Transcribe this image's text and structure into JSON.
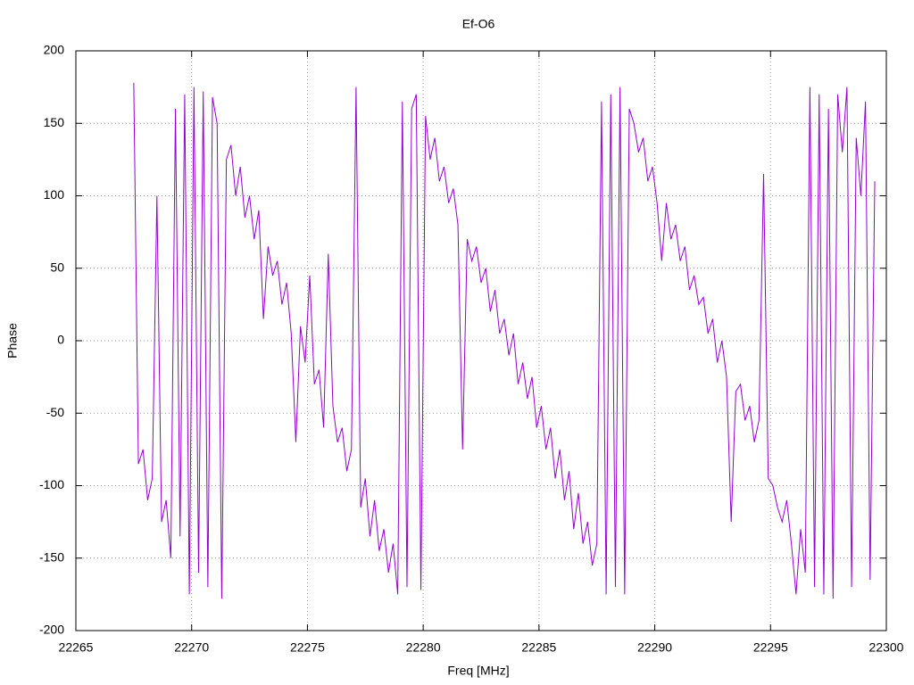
{
  "chart_data": {
    "type": "line",
    "title": "Ef-O6",
    "x_label": "Freq [MHz]",
    "y_label": "Phase",
    "xlim": [
      22265,
      22300
    ],
    "xticks": [
      22265,
      22270,
      22275,
      22280,
      22285,
      22290,
      22295,
      22300
    ],
    "ylim": [
      -200,
      200
    ],
    "yticks": [
      -200,
      -150,
      -100,
      -50,
      0,
      50,
      100,
      150,
      200
    ],
    "grid": true,
    "series": [
      {
        "color": "#9400d3",
        "x": [
          22267.5,
          22267.7,
          22267.9,
          22268.1,
          22268.3,
          22268.5,
          22268.7,
          22268.9,
          22269.1,
          22269.3,
          22269.5,
          22269.7,
          22269.9,
          22270.1,
          22270.3,
          22270.5,
          22270.7,
          22270.9,
          22271.1,
          22271.3,
          22271.5,
          22271.7,
          22271.9,
          22272.1,
          22272.3,
          22272.5,
          22272.7,
          22272.9,
          22273.1,
          22273.3,
          22273.5,
          22273.7,
          22273.9,
          22274.1,
          22274.3,
          22274.5,
          22274.7,
          22274.9,
          22275.1,
          22275.3,
          22275.5,
          22275.7,
          22275.9,
          22276.1,
          22276.3,
          22276.5,
          22276.7,
          22276.9,
          22277.1,
          22277.3,
          22277.5,
          22277.7,
          22277.9,
          22278.1,
          22278.3,
          22278.5,
          22278.7,
          22278.9,
          22279.1,
          22279.3,
          22279.5,
          22279.7,
          22279.9,
          22280.1,
          22280.3,
          22280.5,
          22280.7,
          22280.9,
          22281.1,
          22281.3,
          22281.5,
          22281.7,
          22281.9,
          22282.1,
          22282.3,
          22282.5,
          22282.7,
          22282.9,
          22283.1,
          22283.3,
          22283.5,
          22283.7,
          22283.9,
          22284.1,
          22284.3,
          22284.5,
          22284.7,
          22284.9,
          22285.1,
          22285.3,
          22285.5,
          22285.7,
          22285.9,
          22286.1,
          22286.3,
          22286.5,
          22286.7,
          22286.9,
          22287.1,
          22287.3,
          22287.5,
          22287.7,
          22287.9,
          22288.1,
          22288.3,
          22288.5,
          22288.7,
          22288.9,
          22289.1,
          22289.3,
          22289.5,
          22289.7,
          22289.9,
          22290.1,
          22290.3,
          22290.5,
          22290.7,
          22290.9,
          22291.1,
          22291.3,
          22291.5,
          22291.7,
          22291.9,
          22292.1,
          22292.3,
          22292.5,
          22292.7,
          22292.9,
          22293.1,
          22293.3,
          22293.5,
          22293.7,
          22293.9,
          22294.1,
          22294.3,
          22294.5,
          22294.7,
          22294.9,
          22295.1,
          22295.3,
          22295.5,
          22295.7,
          22295.9,
          22296.1,
          22296.3,
          22296.5,
          22296.7,
          22296.9,
          22297.1,
          22297.3,
          22297.5,
          22297.7,
          22297.9,
          22298.1,
          22298.3,
          22298.5,
          22298.7,
          22298.9,
          22299.1,
          22299.3,
          22299.5
        ],
        "values": [
          178,
          -85,
          -75,
          -110,
          -95,
          100,
          -125,
          -110,
          -150,
          160,
          -135,
          170,
          -175,
          175,
          -160,
          172,
          -170,
          168,
          150,
          -178,
          125,
          135,
          100,
          120,
          85,
          100,
          70,
          90,
          15,
          65,
          45,
          55,
          25,
          40,
          5,
          -70,
          10,
          -15,
          45,
          -30,
          -20,
          -60,
          60,
          -45,
          -70,
          -60,
          -90,
          -75,
          175,
          -115,
          -95,
          -135,
          -110,
          -145,
          -130,
          -160,
          -140,
          -175,
          165,
          -170,
          160,
          170,
          -172,
          155,
          125,
          140,
          110,
          120,
          95,
          105,
          80,
          -75,
          70,
          55,
          65,
          40,
          50,
          20,
          35,
          5,
          15,
          -10,
          5,
          -30,
          -15,
          -40,
          -25,
          -60,
          -45,
          -75,
          -60,
          -95,
          -75,
          -110,
          -90,
          -130,
          -105,
          -140,
          -125,
          -155,
          -140,
          165,
          -175,
          170,
          -170,
          175,
          -175,
          160,
          150,
          130,
          140,
          110,
          120,
          95,
          55,
          95,
          70,
          80,
          55,
          65,
          35,
          45,
          25,
          30,
          5,
          15,
          -15,
          0,
          -25,
          -125,
          -35,
          -30,
          -55,
          -45,
          -70,
          -55,
          115,
          -95,
          -100,
          -115,
          -125,
          -110,
          -140,
          -175,
          -130,
          -160,
          175,
          -170,
          170,
          -175,
          160,
          -178,
          170,
          130,
          175,
          -170,
          140,
          100,
          165,
          -165,
          110
        ]
      }
    ]
  }
}
